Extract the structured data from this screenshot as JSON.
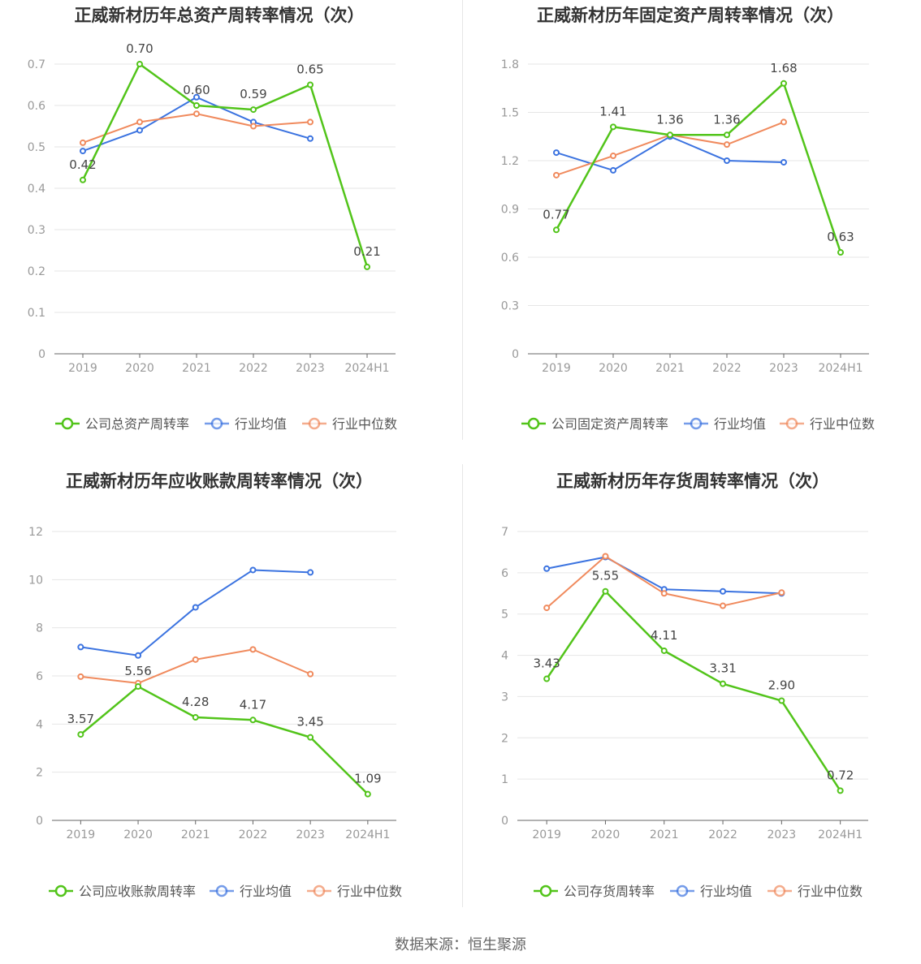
{
  "colors": {
    "company": "#52c41a",
    "avg": "#3b73e0",
    "median": "#f08a5d",
    "grid": "#e6e6e6",
    "axis": "#666666",
    "tick_text": "#999999",
    "label_text": "#444444",
    "title_text": "#333333"
  },
  "source_text": "数据来源：恒生聚源",
  "chart_data": [
    {
      "type": "line",
      "title": "正威新材历年总资产周转率情况（次）",
      "categories": [
        "2019",
        "2020",
        "2021",
        "2022",
        "2023",
        "2024H1"
      ],
      "ylim": [
        0,
        0.7
      ],
      "yticks": [
        "0",
        "0.1",
        "0.2",
        "0.3",
        "0.4",
        "0.5",
        "0.6",
        "0.7"
      ],
      "grid": true,
      "legend_position": "bottom",
      "series": [
        {
          "name": "公司总资产周转率",
          "role": "company",
          "values": [
            0.42,
            0.7,
            0.6,
            0.59,
            0.65,
            0.21
          ],
          "labels": [
            "0.42",
            "0.70",
            "0.60",
            "0.59",
            "0.65",
            "0.21"
          ]
        },
        {
          "name": "行业均值",
          "role": "avg",
          "values": [
            0.49,
            0.54,
            0.62,
            0.56,
            0.52,
            null
          ]
        },
        {
          "name": "行业中位数",
          "role": "median",
          "values": [
            0.51,
            0.56,
            0.58,
            0.55,
            0.56,
            null
          ]
        }
      ]
    },
    {
      "type": "line",
      "title": "正威新材历年固定资产周转率情况（次）",
      "categories": [
        "2019",
        "2020",
        "2021",
        "2022",
        "2023",
        "2024H1"
      ],
      "ylim": [
        0,
        1.8
      ],
      "yticks": [
        "0",
        "0.3",
        "0.6",
        "0.9",
        "1.2",
        "1.5",
        "1.8"
      ],
      "grid": true,
      "legend_position": "bottom",
      "series": [
        {
          "name": "公司固定资产周转率",
          "role": "company",
          "values": [
            0.77,
            1.41,
            1.36,
            1.36,
            1.68,
            0.63
          ],
          "labels": [
            "0.77",
            "1.41",
            "1.36",
            "1.36",
            "1.68",
            "0.63"
          ]
        },
        {
          "name": "行业均值",
          "role": "avg",
          "values": [
            1.25,
            1.14,
            1.35,
            1.2,
            1.19,
            null
          ]
        },
        {
          "name": "行业中位数",
          "role": "median",
          "values": [
            1.11,
            1.23,
            1.36,
            1.3,
            1.44,
            null
          ]
        }
      ]
    },
    {
      "type": "line",
      "title": "正威新材历年应收账款周转率情况（次）",
      "categories": [
        "2019",
        "2020",
        "2021",
        "2022",
        "2023",
        "2024H1"
      ],
      "ylim": [
        0,
        12
      ],
      "yticks": [
        "0",
        "2",
        "4",
        "6",
        "8",
        "10",
        "12"
      ],
      "grid": true,
      "legend_position": "bottom",
      "series": [
        {
          "name": "公司应收账款周转率",
          "role": "company",
          "values": [
            3.57,
            5.56,
            4.28,
            4.17,
            3.45,
            1.09
          ],
          "labels": [
            "3.57",
            "5.56",
            "4.28",
            "4.17",
            "3.45",
            "1.09"
          ]
        },
        {
          "name": "行业均值",
          "role": "avg",
          "values": [
            7.2,
            6.85,
            8.85,
            10.4,
            10.3,
            null
          ]
        },
        {
          "name": "行业中位数",
          "role": "median",
          "values": [
            5.97,
            5.7,
            6.68,
            7.1,
            6.08,
            null
          ]
        }
      ]
    },
    {
      "type": "line",
      "title": "正威新材历年存货周转率情况（次）",
      "categories": [
        "2019",
        "2020",
        "2021",
        "2022",
        "2023",
        "2024H1"
      ],
      "ylim": [
        0,
        7
      ],
      "yticks": [
        "0",
        "1",
        "2",
        "3",
        "4",
        "5",
        "6",
        "7"
      ],
      "grid": true,
      "legend_position": "bottom",
      "series": [
        {
          "name": "公司存货周转率",
          "role": "company",
          "values": [
            3.43,
            5.55,
            4.11,
            3.31,
            2.9,
            0.72
          ],
          "labels": [
            "3.43",
            "5.55",
            "4.11",
            "3.31",
            "2.90",
            "0.72"
          ]
        },
        {
          "name": "行业均值",
          "role": "avg",
          "values": [
            6.1,
            6.38,
            5.6,
            5.55,
            5.5,
            null
          ]
        },
        {
          "name": "行业中位数",
          "role": "median",
          "values": [
            5.15,
            6.4,
            5.5,
            5.2,
            5.52,
            null
          ]
        }
      ]
    }
  ]
}
